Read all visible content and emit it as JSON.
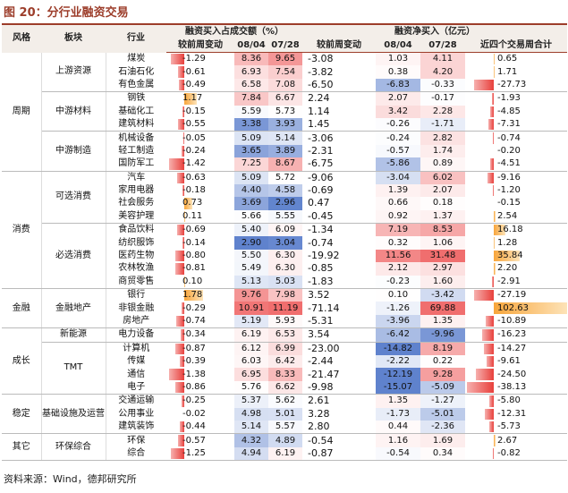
{
  "title": "图 20：分行业融资交易",
  "header": {
    "style": "风格",
    "sector": "板块",
    "industry": "行业",
    "group1": "融资买入占成交额（%）",
    "group2": "融资净买入（亿元）",
    "sub": [
      "较前周变动",
      "08/04",
      "07/28",
      "较前周变动",
      "08/04",
      "07/28",
      "近四个交易周合计"
    ]
  },
  "styles": [
    {
      "name": "周期",
      "sectors": [
        {
          "name": "上游资源",
          "rows": [
            [
              "煤炭",
              "-1.29",
              "8.36",
              "9.65",
              "-3.08",
              "1.03",
              "4.11",
              "0.65"
            ],
            [
              "石油石化",
              "-0.61",
              "6.93",
              "7.54",
              "-3.82",
              "0.38",
              "4.20",
              "1.71"
            ],
            [
              "有色金属",
              "-0.49",
              "6.58",
              "7.08",
              "-6.50",
              "-6.83",
              "-0.33",
              "-27.73"
            ]
          ]
        },
        {
          "name": "中游材料",
          "rows": [
            [
              "钢铁",
              "1.17",
              "7.84",
              "6.67",
              "2.24",
              "2.07",
              "-0.17",
              "-1.93"
            ],
            [
              "基础化工",
              "-0.15",
              "5.59",
              "5.73",
              "1.14",
              "3.42",
              "2.28",
              "-4.85"
            ],
            [
              "建筑材料",
              "-0.55",
              "3.38",
              "3.93",
              "1.45",
              "-0.26",
              "-1.71",
              "-7.31"
            ]
          ]
        },
        {
          "name": "中游制造",
          "rows": [
            [
              "机械设备",
              "-0.05",
              "5.09",
              "5.14",
              "-3.06",
              "-0.24",
              "2.82",
              "-0.74"
            ],
            [
              "轻工制造",
              "-0.24",
              "3.65",
              "3.89",
              "-2.31",
              "-0.57",
              "1.74",
              "-0.20"
            ],
            [
              "国防军工",
              "-1.42",
              "7.25",
              "8.67",
              "-6.75",
              "-5.86",
              "0.89",
              "-4.51"
            ]
          ]
        }
      ]
    },
    {
      "name": "消费",
      "sectors": [
        {
          "name": "可选消费",
          "rows": [
            [
              "汽车",
              "-0.63",
              "5.09",
              "5.72",
              "-9.06",
              "-3.04",
              "6.02",
              "-9.16"
            ],
            [
              "家用电器",
              "-0.18",
              "4.40",
              "4.58",
              "-0.69",
              "1.39",
              "2.07",
              "-1.20"
            ],
            [
              "社会服务",
              "0.73",
              "3.69",
              "2.96",
              "0.47",
              "0.66",
              "0.18",
              "-0.15"
            ],
            [
              "美容护理",
              "0.11",
              "5.66",
              "5.55",
              "-0.45",
              "0.92",
              "1.37",
              "2.54"
            ]
          ]
        },
        {
          "name": "必选消费",
          "rows": [
            [
              "食品饮料",
              "-0.69",
              "5.40",
              "6.09",
              "-1.34",
              "7.19",
              "8.53",
              "16.18"
            ],
            [
              "纺织服饰",
              "-0.14",
              "2.90",
              "3.04",
              "-0.74",
              "0.32",
              "1.06",
              "1.28"
            ],
            [
              "医药生物",
              "-0.80",
              "5.50",
              "6.30",
              "-19.92",
              "11.56",
              "31.48",
              "35.84"
            ],
            [
              "农林牧渔",
              "-0.81",
              "5.49",
              "6.30",
              "-0.85",
              "2.12",
              "2.97",
              "2.20"
            ],
            [
              "商贸零售",
              "0.10",
              "5.13",
              "5.03",
              "-1.83",
              "-0.23",
              "1.60",
              "-2.91"
            ]
          ]
        }
      ]
    },
    {
      "name": "金融",
      "sectors": [
        {
          "name": "金融地产",
          "rows": [
            [
              "银行",
              "1.78",
              "9.76",
              "7.98",
              "3.52",
              "0.10",
              "-3.42",
              "-27.19"
            ],
            [
              "非银金融",
              "-0.29",
              "10.91",
              "11.19",
              "-71.14",
              "-1.26",
              "69.88",
              "102.63"
            ],
            [
              "房地产",
              "-0.74",
              "5.19",
              "5.93",
              "-5.31",
              "-3.96",
              "1.35",
              "-10.89"
            ]
          ]
        }
      ]
    },
    {
      "name": "成长",
      "sectors": [
        {
          "name": "新能源",
          "rows": [
            [
              "电力设备",
              "-0.34",
              "6.19",
              "6.53",
              "3.54",
              "-6.42",
              "-9.96",
              "-16.23"
            ]
          ]
        },
        {
          "name": "TMT",
          "rows": [
            [
              "计算机",
              "-0.87",
              "6.12",
              "6.99",
              "-23.00",
              "-14.82",
              "8.19",
              "-14.27"
            ],
            [
              "传媒",
              "-0.39",
              "6.03",
              "6.42",
              "-2.44",
              "-2.22",
              "0.22",
              "-9.61"
            ],
            [
              "通信",
              "-1.38",
              "6.95",
              "8.33",
              "-21.47",
              "-12.19",
              "9.28",
              "-24.50"
            ],
            [
              "电子",
              "-0.86",
              "5.76",
              "6.62",
              "-9.98",
              "-15.07",
              "-5.09",
              "-38.13"
            ]
          ]
        }
      ]
    },
    {
      "name": "稳定",
      "sectors": [
        {
          "name": "基础设施及运营",
          "rows": [
            [
              "交通运输",
              "-0.25",
              "5.37",
              "5.62",
              "2.61",
              "1.35",
              "-1.27",
              "-5.80"
            ],
            [
              "公用事业",
              "-0.02",
              "4.98",
              "5.01",
              "3.28",
              "-1.73",
              "-5.01",
              "-12.31"
            ],
            [
              "建筑装饰",
              "-0.44",
              "5.14",
              "5.57",
              "2.80",
              "0.44",
              "-2.36",
              "-5.73"
            ]
          ]
        }
      ]
    },
    {
      "name": "其它",
      "sectors": [
        {
          "name": "环保综合",
          "rows": [
            [
              "环保",
              "-0.57",
              "4.32",
              "4.89",
              "-0.54",
              "1.16",
              "1.69",
              "2.67"
            ],
            [
              "综合",
              "-1.25",
              "4.94",
              "6.19",
              "-0.87",
              "-0.54",
              "0.34",
              "-0.82"
            ]
          ]
        }
      ]
    }
  ],
  "source": "资料来源：Wind，德邦研究所"
}
